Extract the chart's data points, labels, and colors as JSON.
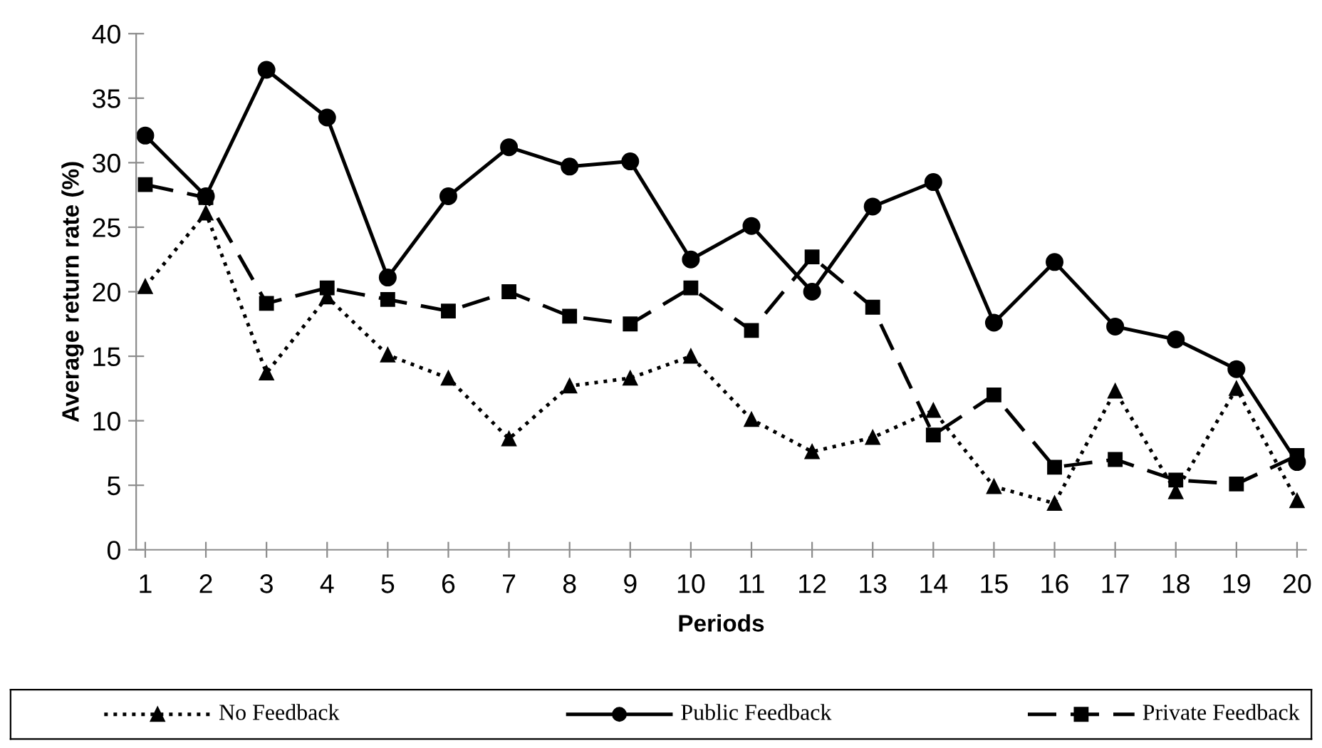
{
  "chart_data": {
    "type": "line",
    "xlabel": "Periods",
    "ylabel": "Average return rate (%)",
    "categories": [
      "1",
      "2",
      "3",
      "4",
      "5",
      "6",
      "7",
      "8",
      "9",
      "10",
      "11",
      "12",
      "13",
      "14",
      "15",
      "16",
      "17",
      "18",
      "19",
      "20"
    ],
    "series": [
      {
        "name": "No Feedback",
        "color": "#000000",
        "marker": "triangle",
        "line_style": "dotted",
        "values": [
          20.4,
          26.1,
          13.7,
          19.6,
          15.1,
          13.3,
          8.6,
          12.7,
          13.3,
          15.0,
          10.1,
          7.6,
          8.7,
          10.8,
          4.9,
          3.6,
          12.3,
          4.5,
          12.5,
          3.8
        ]
      },
      {
        "name": "Public Feedback",
        "color": "#000000",
        "marker": "circle",
        "line_style": "solid",
        "values": [
          32.1,
          27.4,
          37.2,
          33.5,
          21.1,
          27.4,
          31.2,
          29.7,
          30.1,
          22.5,
          25.1,
          20.0,
          26.6,
          28.5,
          17.6,
          22.3,
          17.3,
          16.3,
          14.0,
          6.8
        ]
      },
      {
        "name": "Private Feedback",
        "color": "#000000",
        "marker": "square",
        "line_style": "dashed",
        "values": [
          28.3,
          27.3,
          19.1,
          20.3,
          19.4,
          18.5,
          20.0,
          18.1,
          17.5,
          20.3,
          17.0,
          22.7,
          18.8,
          8.9,
          12.0,
          6.4,
          7.0,
          5.4,
          5.1,
          7.3
        ]
      }
    ],
    "ylim": [
      0,
      40
    ],
    "yticks": [
      0,
      5,
      10,
      15,
      20,
      25,
      30,
      35,
      40
    ],
    "grid": false,
    "legend": "bottom"
  }
}
